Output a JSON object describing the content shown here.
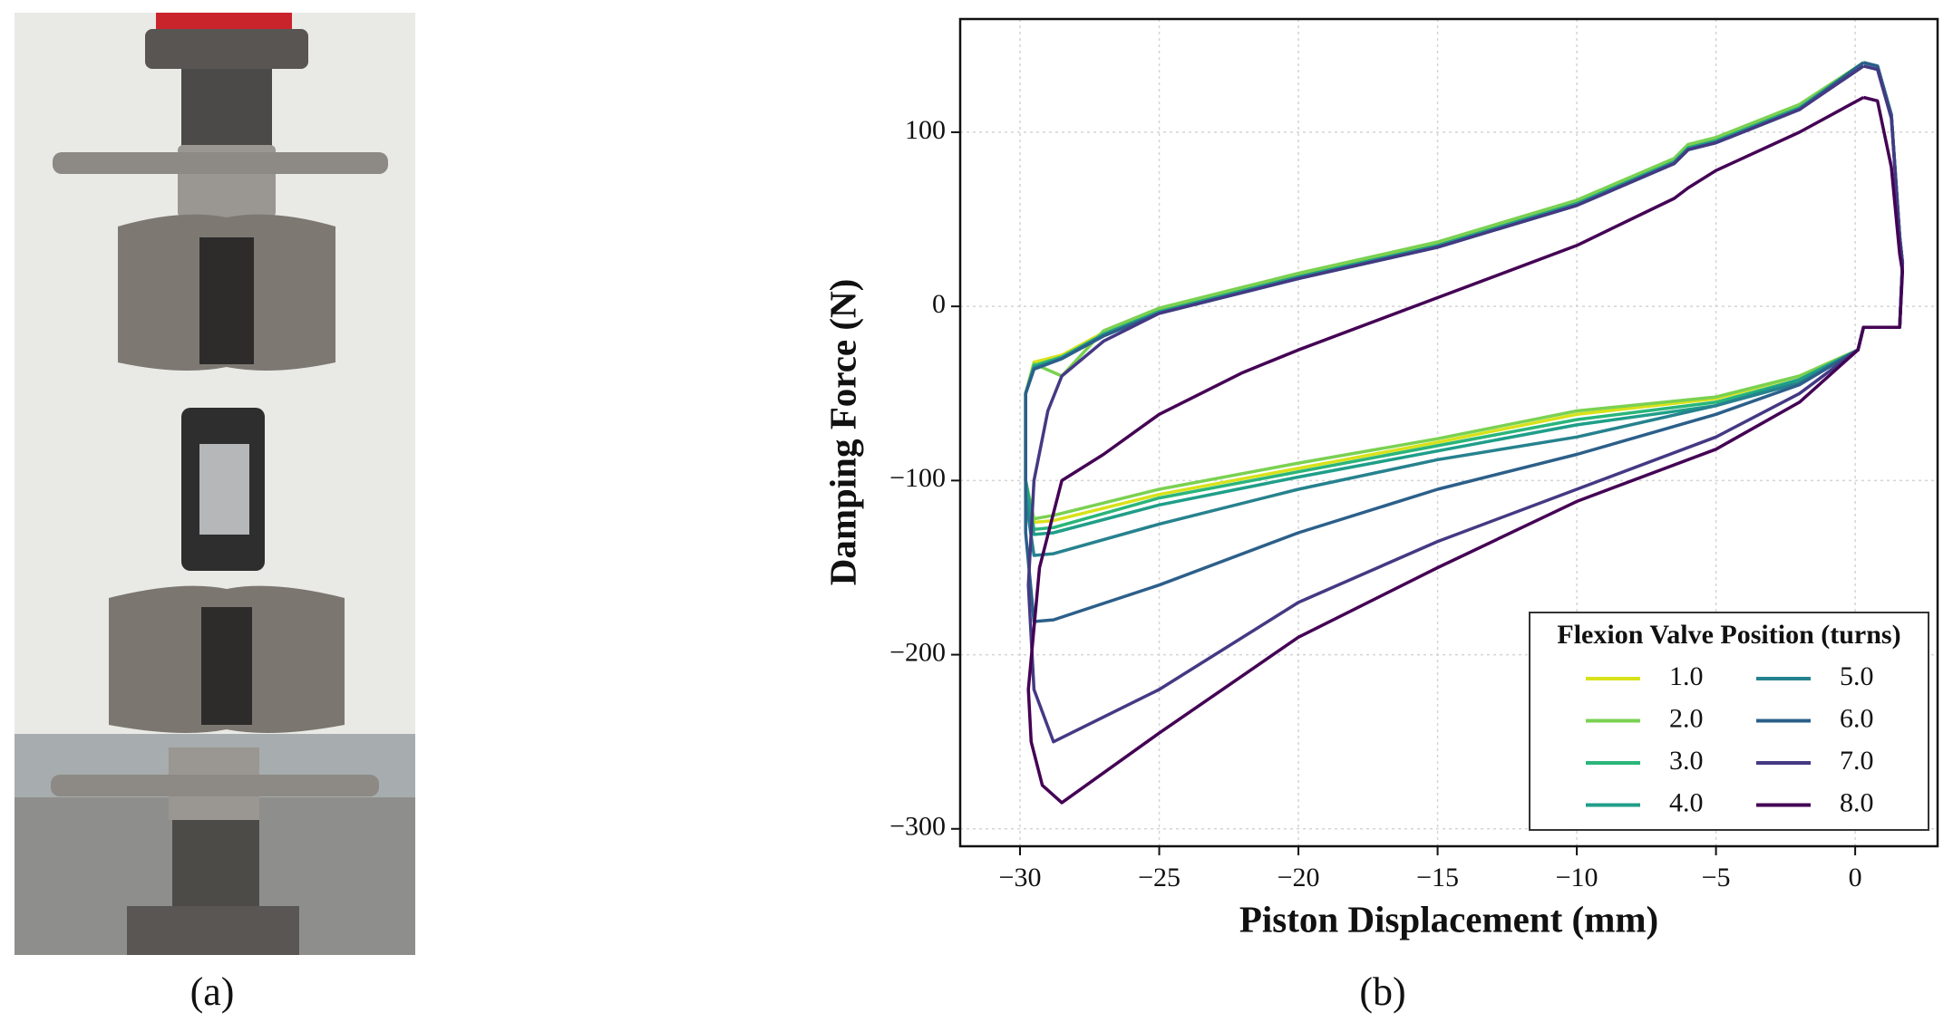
{
  "panel_labels": [
    "(a)",
    "(b)"
  ],
  "chart_data": {
    "type": "line",
    "xlabel": "Piston Displacement (mm)",
    "ylabel": "Damping Force (N)",
    "xlim": [
      -32.15,
      2.96
    ],
    "ylim": [
      -310,
      165
    ],
    "xticks": [
      {
        "value": -30,
        "label": "−30"
      },
      {
        "value": -25,
        "label": "−25"
      },
      {
        "value": -20,
        "label": "−20"
      },
      {
        "value": -15,
        "label": "−15"
      },
      {
        "value": -10,
        "label": "−10"
      },
      {
        "value": -5,
        "label": "−5"
      },
      0
    ],
    "yticks": [
      {
        "value": -300,
        "label": "−300"
      },
      {
        "value": -200,
        "label": "−200"
      },
      {
        "value": -100,
        "label": "−100"
      },
      0,
      100
    ],
    "grid": true,
    "legend_title": "Flexion Valve Position (turns)",
    "legend_loc": "lower right",
    "series": [
      {
        "name": "1.0",
        "color": "#d8e219",
        "x": [
          0.3,
          0.8,
          1.3,
          1.6,
          1.7,
          1.6,
          0.8,
          0.3,
          0.1,
          -2,
          -5,
          -10,
          -15,
          -20,
          -25,
          -28.8,
          -29.5,
          -29.8,
          -29.8,
          -29.5,
          -28.5,
          -27,
          -25,
          -22,
          -20,
          -15,
          -10,
          -6.5,
          -6,
          -5,
          -2,
          0.3
        ],
        "values": [
          140,
          138,
          110,
          40,
          25,
          -12,
          -12,
          -12,
          -25,
          -40,
          -53,
          -62,
          -78,
          -93,
          -108,
          -123,
          -124,
          -100,
          -50,
          -32,
          -28,
          -15,
          -2,
          10,
          18,
          36,
          60,
          84,
          92,
          96,
          115,
          140
        ]
      },
      {
        "name": "2.0",
        "color": "#7ad151",
        "x": [
          0.3,
          0.8,
          1.3,
          1.6,
          1.7,
          1.6,
          0.8,
          0.3,
          0.1,
          -2,
          -5,
          -10,
          -15,
          -20,
          -25,
          -28.8,
          -29.5,
          -29.8,
          -29.8,
          -29.5,
          -28.5,
          -27,
          -25,
          -22,
          -20,
          -15,
          -10,
          -6.5,
          -6,
          -5,
          -2,
          0.3
        ],
        "values": [
          140,
          138,
          110,
          40,
          25,
          -12,
          -12,
          -12,
          -25,
          -40,
          -52,
          -60,
          -76,
          -90,
          -105,
          -120,
          -122,
          -100,
          -50,
          -33,
          -40,
          -14,
          -1,
          11,
          19,
          37,
          61,
          85,
          93,
          97,
          116,
          140
        ]
      },
      {
        "name": "3.0",
        "color": "#2ab57a",
        "x": [
          0.3,
          0.8,
          1.3,
          1.6,
          1.7,
          1.6,
          0.8,
          0.3,
          0.1,
          -2,
          -5,
          -10,
          -15,
          -20,
          -25,
          -28.8,
          -29.5,
          -29.8,
          -29.8,
          -29.5,
          -28.5,
          -27,
          -25,
          -22,
          -20,
          -15,
          -10,
          -6.5,
          -6,
          -5,
          -2,
          0.3
        ],
        "values": [
          140,
          138,
          110,
          40,
          25,
          -12,
          -12,
          -12,
          -25,
          -42,
          -55,
          -65,
          -80,
          -95,
          -110,
          -127,
          -128,
          -100,
          -50,
          -34,
          -29,
          -16,
          -3,
          9,
          17,
          35,
          59,
          83,
          91,
          95,
          114,
          140
        ]
      },
      {
        "name": "4.0",
        "color": "#1f9e89",
        "x": [
          0.3,
          0.8,
          1.3,
          1.6,
          1.7,
          1.6,
          0.8,
          0.3,
          0.1,
          -2,
          -5,
          -10,
          -15,
          -20,
          -25,
          -28.8,
          -29.5,
          -29.8,
          -29.8,
          -29.5,
          -28.5,
          -27,
          -25,
          -22,
          -20,
          -15,
          -10,
          -6.5,
          -6,
          -5,
          -2,
          0.3
        ],
        "values": [
          140,
          138,
          110,
          40,
          25,
          -12,
          -12,
          -12,
          -25,
          -42,
          -57,
          -68,
          -83,
          -98,
          -114,
          -130,
          -131,
          -100,
          -50,
          -35,
          -30,
          -16,
          -3,
          9,
          17,
          35,
          59,
          83,
          91,
          95,
          114,
          140
        ]
      },
      {
        "name": "5.0",
        "color": "#26828e",
        "x": [
          0.3,
          0.8,
          1.3,
          1.6,
          1.7,
          1.6,
          0.8,
          0.3,
          0.1,
          -2,
          -5,
          -10,
          -15,
          -20,
          -25,
          -28.8,
          -29.5,
          -29.8,
          -29.8,
          -29.5,
          -28.5,
          -27,
          -25,
          -22,
          -20,
          -15,
          -10,
          -6.5,
          -6,
          -5,
          -2,
          0.3
        ],
        "values": [
          140,
          138,
          110,
          40,
          25,
          -12,
          -12,
          -12,
          -25,
          -44,
          -57,
          -75,
          -88,
          -105,
          -125,
          -142,
          -143,
          -110,
          -50,
          -36,
          -30,
          -17,
          -4,
          8,
          16,
          34,
          58,
          82,
          90,
          94,
          113,
          140
        ]
      },
      {
        "name": "6.0",
        "color": "#2c5f8a",
        "x": [
          0.3,
          0.8,
          1.3,
          1.6,
          1.7,
          1.6,
          0.8,
          0.3,
          0.1,
          -2,
          -5,
          -10,
          -15,
          -20,
          -25,
          -28.8,
          -29.5,
          -29.8,
          -29.8,
          -29.5,
          -28.5,
          -27,
          -25,
          -22,
          -20,
          -15,
          -10,
          -6.5,
          -6,
          -5,
          -2,
          0.3
        ],
        "values": [
          140,
          138,
          110,
          40,
          25,
          -12,
          -12,
          -12,
          -25,
          -45,
          -62,
          -85,
          -105,
          -130,
          -160,
          -180,
          -181,
          -130,
          -50,
          -36,
          -30,
          -17,
          -4,
          8,
          16,
          34,
          58,
          82,
          90,
          94,
          113,
          140
        ]
      },
      {
        "name": "7.0",
        "color": "#443983",
        "x": [
          0.3,
          0.8,
          1.3,
          1.6,
          1.7,
          1.6,
          0.8,
          0.3,
          0.1,
          -2,
          -5,
          -10,
          -15,
          -20,
          -25,
          -28.8,
          -29.5,
          -29.7,
          -29.5,
          -29,
          -28.5,
          -27,
          -25,
          -22,
          -20,
          -15,
          -10,
          -6.5,
          -6,
          -5,
          -2,
          0.3
        ],
        "values": [
          138,
          136,
          108,
          40,
          25,
          -12,
          -12,
          -12,
          -25,
          -50,
          -75,
          -105,
          -135,
          -170,
          -220,
          -250,
          -220,
          -160,
          -100,
          -60,
          -40,
          -20,
          -4,
          8,
          16,
          34,
          58,
          82,
          90,
          94,
          113,
          138
        ]
      },
      {
        "name": "8.0",
        "color": "#440154",
        "x": [
          0.3,
          0.8,
          1.3,
          1.6,
          1.7,
          1.6,
          0.8,
          0.3,
          0.1,
          -2,
          -5,
          -10,
          -15,
          -20,
          -25,
          -28.5,
          -29.2,
          -29.6,
          -29.7,
          -29.3,
          -28.5,
          -27,
          -25,
          -22,
          -20,
          -15,
          -10,
          -6.5,
          -6,
          -5,
          -2,
          0.3
        ],
        "values": [
          120,
          118,
          80,
          30,
          20,
          -12,
          -12,
          -12,
          -25,
          -55,
          -82,
          -112,
          -150,
          -190,
          -245,
          -285,
          -275,
          -250,
          -220,
          -150,
          -100,
          -85,
          -62,
          -38,
          -25,
          5,
          35,
          62,
          68,
          78,
          100,
          120
        ]
      }
    ]
  }
}
